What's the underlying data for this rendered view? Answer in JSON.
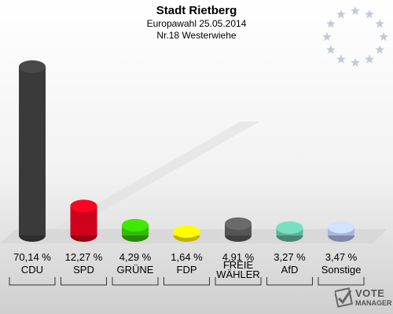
{
  "header": {
    "title": "Stadt Rietberg",
    "subtitle": "Europawahl 25.05.2014",
    "district": "Nr.18 Westerwiehe"
  },
  "logo": {
    "line1": "VOTE",
    "line2": "MANAGER"
  },
  "chart_data": {
    "type": "bar",
    "categories": [
      "CDU",
      "SPD",
      "GRÜNE",
      "FDP",
      "FREIE WÄHLER",
      "AfD",
      "Sonstige"
    ],
    "values": [
      70.14,
      12.27,
      4.29,
      1.64,
      4.91,
      3.27,
      3.47
    ],
    "value_labels": [
      "70,14 %",
      "12,27 %",
      "4,29 %",
      "1,64 %",
      "4,91 %",
      "3,27 %",
      "3,47 %"
    ],
    "colors": [
      "#3a3a3a",
      "#d0021b",
      "#33bb00",
      "#ffee00",
      "#555555",
      "#5fb39c",
      "#a9b5e0"
    ],
    "ylim": [
      0,
      75
    ],
    "legend": "none",
    "grid": false
  }
}
